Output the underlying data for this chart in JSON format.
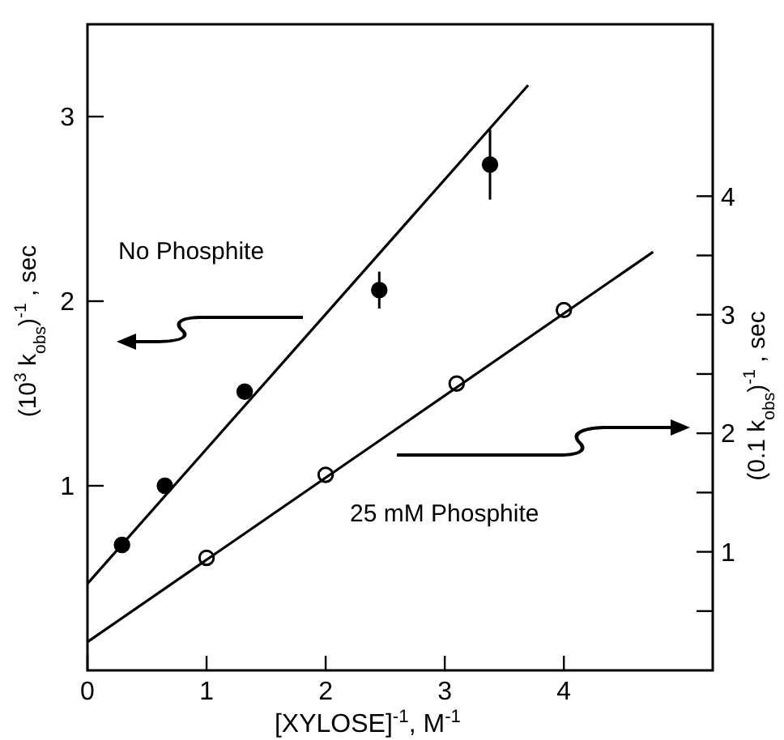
{
  "chart_data": {
    "type": "scatter",
    "xlabel": "[XYLOSE]$^{-1}$, M$^{-1}$",
    "ylabel": "(10$^{3}$ k$_{obs}$)$^{-1}$ , sec",
    "y2label": "(0.1 k$_{obs}$)$^{-1}$ , sec",
    "xlim": [
      0,
      5.25
    ],
    "xticks": [
      0,
      1,
      2,
      3,
      4
    ],
    "ylim": [
      0,
      3.5
    ],
    "yticks": [
      1,
      2,
      3
    ],
    "y2lim": [
      0,
      5.45
    ],
    "y2ticks": [
      {
        "value": 0.5,
        "label": null
      },
      1,
      {
        "value": 1.5,
        "label": null
      },
      2,
      {
        "value": 2.5,
        "label": null
      },
      3,
      {
        "value": 3.5,
        "label": null
      },
      4
    ],
    "marker": "circle",
    "grid": false,
    "annotations": [
      "No Phosphite",
      "25 mM Phosphite"
    ],
    "series": [
      {
        "type": "scatter",
        "color": "#000000",
        "x": [
          0.29,
          0.65,
          1.32,
          2.45,
          3.38
        ],
        "values": [
          0.68,
          1.0,
          1.51,
          2.06,
          2.74
        ],
        "errors": [
          null,
          null,
          null,
          0.1,
          0.19
        ]
      },
      {
        "type": "line",
        "color": "#000000",
        "x": [
          0,
          3.7
        ],
        "values": [
          0.47,
          3.17
        ],
        "marker": "none"
      },
      {
        "type": "scatter",
        "axis": "y2",
        "color": "#ffffff",
        "x": [
          1.0,
          2.0,
          3.1,
          4.0
        ],
        "values": [
          0.95,
          1.65,
          2.42,
          3.04
        ]
      },
      {
        "type": "line",
        "axis": "y2",
        "color": "#000000",
        "x": [
          0,
          4.75
        ],
        "values": [
          0.24,
          3.53
        ],
        "marker": "none"
      }
    ]
  }
}
